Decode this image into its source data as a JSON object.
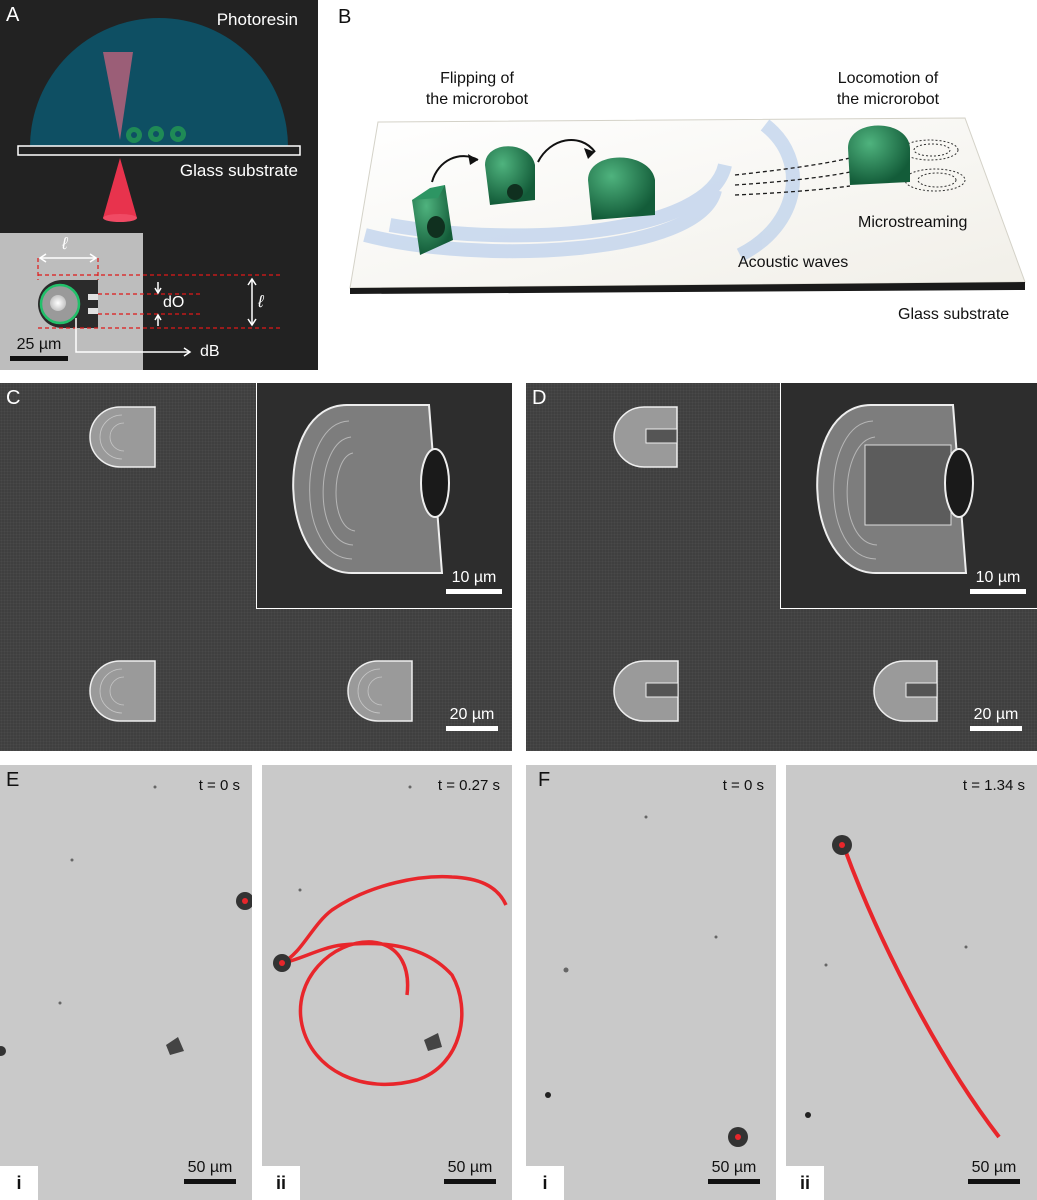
{
  "panelA": {
    "label": "A",
    "photoresin": "Photoresin",
    "glass_substrate": "Glass substrate",
    "dim_l": "ℓ",
    "dim_do": "dO",
    "dim_db": "dB",
    "scale": "25 µm"
  },
  "panelB": {
    "label": "B",
    "flipping": "Flipping of\nthe microrobot",
    "locomotion": "Locomotion of\nthe microrobot",
    "microstreaming": "Microstreaming",
    "acoustic_waves": "Acoustic waves",
    "glass_substrate": "Glass substrate"
  },
  "panelC": {
    "label": "C",
    "inset_scale": "10 µm",
    "scale": "20 µm"
  },
  "panelD": {
    "label": "D",
    "inset_scale": "10 µm",
    "scale": "20 µm"
  },
  "panelE": {
    "label": "E",
    "i": {
      "sub": "i",
      "time": "t = 0 s",
      "scale": "50 µm"
    },
    "ii": {
      "sub": "ii",
      "time": "t = 0.27 s",
      "scale": "50 µm"
    }
  },
  "panelF": {
    "label": "F",
    "i": {
      "sub": "i",
      "time": "t = 0 s",
      "scale": "50 µm"
    },
    "ii": {
      "sub": "ii",
      "time": "t = 1.34 s",
      "scale": "50 µm"
    }
  },
  "colors": {
    "resin": "#0e4f63",
    "laser": "#e8334d",
    "robot": "#1f8a56",
    "track": "#e8262b"
  }
}
